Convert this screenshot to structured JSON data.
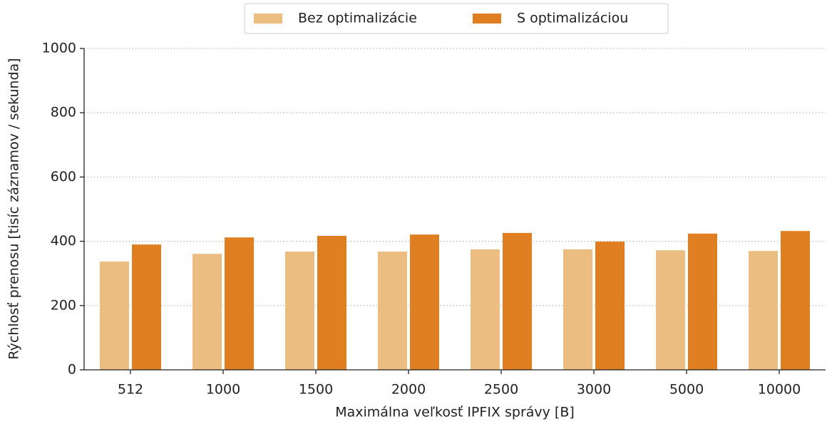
{
  "chart_data": {
    "type": "bar",
    "x_label": "Maximálna veľkosť IPFIX správy [B]",
    "y_label": "Rýchlosť prenosu [tisíc záznamov / sekunda]",
    "categories": [
      "512",
      "1000",
      "1500",
      "2000",
      "2500",
      "3000",
      "5000",
      "10000"
    ],
    "series": [
      {
        "name": "Bez optimalizácie",
        "color": "#ecbd80",
        "values": [
          337,
          361,
          368,
          368,
          375,
          375,
          372,
          370
        ]
      },
      {
        "name": "S optimalizáciou",
        "color": "#e07f22",
        "values": [
          390,
          412,
          417,
          421,
          426,
          399,
          424,
          432
        ]
      }
    ],
    "ylim": [
      0,
      1000
    ],
    "yticks": [
      0,
      200,
      400,
      600,
      800,
      1000
    ],
    "grid": true,
    "legend": "top"
  }
}
